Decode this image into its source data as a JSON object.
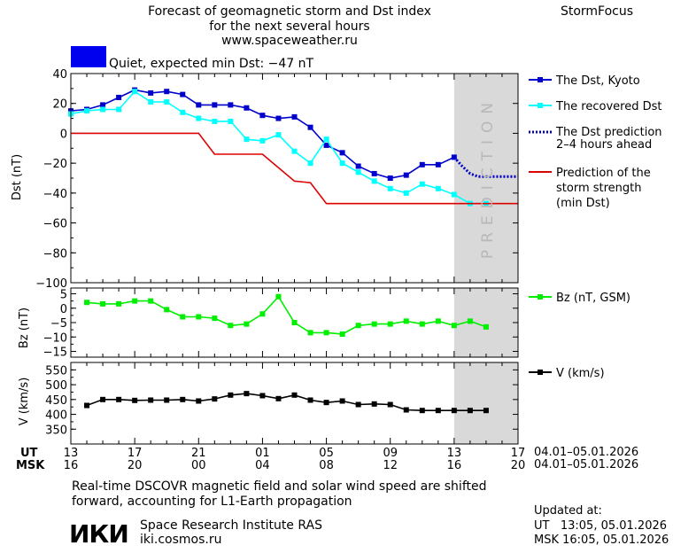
{
  "header": {
    "title_line1": "Forecast of geomagnetic storm and Dst index",
    "title_line2": "for the next several hours",
    "site": "www.spaceweather.ru",
    "brand": "StormFocus"
  },
  "status": {
    "text": "Quiet, expected min Dst: −47 nT",
    "color": "#0000ee"
  },
  "prediction_label": "PREDICTION",
  "legend": {
    "dst_kyoto": "The Dst, Kyoto",
    "recovered": "The recovered Dst",
    "pred_line1": "The Dst prediction",
    "pred_line2": "2–4 hours ahead",
    "strength_line1": "Prediction of the",
    "strength_line2": "storm strength",
    "strength_line3": "(min Dst)",
    "bz": "Bz (nT, GSM)",
    "v": "V (km/s)"
  },
  "time_axis": {
    "ut_label": "UT",
    "msk_label": "MSK",
    "ut_ticks": [
      "13",
      "17",
      "21",
      "01",
      "05",
      "09",
      "13",
      "17"
    ],
    "msk_ticks": [
      "16",
      "20",
      "00",
      "04",
      "08",
      "12",
      "16",
      "20"
    ],
    "date_range_ut": "04.01–05.01.2026",
    "date_range_msk": "04.01–05.01.2026"
  },
  "footer": {
    "note_line1": "Real-time DSCOVR magnetic field and solar wind speed are shifted",
    "note_line2": "forward, accounting for L1-Earth propagation",
    "logo_text": "ИКИ",
    "institute": "Space Research Institute RAS",
    "institute_url": "iki.cosmos.ru",
    "updated_label": "Updated at:",
    "updated_ut": "UT   13:05, 05.01.2026",
    "updated_msk": "MSK 16:05, 05.01.2026"
  },
  "colors": {
    "dst": "#0000cc",
    "recovered": "#00ffff",
    "prediction": "#0000cc",
    "strength": "#dd0000",
    "bz": "#00ee00",
    "v": "#000000",
    "prediction_band": "#d9d9d9"
  },
  "chart_data": [
    {
      "type": "line",
      "ylabel": "Dst (nT)",
      "ylim": [
        -100,
        40
      ],
      "yticks": [
        40,
        20,
        0,
        -20,
        -40,
        -60,
        -80,
        -100
      ],
      "xlim": [
        0,
        28
      ],
      "prediction_start": 24,
      "series": [
        {
          "name": "The Dst, Kyoto",
          "x": [
            0,
            1,
            2,
            3,
            4,
            5,
            6,
            7,
            8,
            9,
            10,
            11,
            12,
            13,
            14,
            15,
            16,
            17,
            18,
            19,
            20,
            21,
            22,
            23,
            24
          ],
          "y": [
            15,
            16,
            19,
            24,
            29,
            27,
            28,
            26,
            19,
            19,
            19,
            17,
            12,
            10,
            11,
            4,
            -8,
            -13,
            -22,
            -27,
            -30,
            -28,
            -21,
            -21,
            -16
          ]
        },
        {
          "name": "The recovered Dst",
          "x": [
            0,
            1,
            2,
            3,
            4,
            5,
            6,
            7,
            8,
            9,
            10,
            11,
            12,
            13,
            14,
            15,
            16,
            17,
            18,
            19,
            20,
            21,
            22,
            23,
            24,
            25,
            26
          ],
          "y": [
            13,
            15,
            16,
            16,
            28,
            21,
            21,
            14,
            10,
            8,
            8,
            -4,
            -5,
            -1,
            -12,
            -20,
            -4,
            -20,
            -26,
            -32,
            -37,
            -40,
            -34,
            -37,
            -41,
            -47,
            -47
          ]
        },
        {
          "name": "The Dst prediction 2–4 hours ahead",
          "x": [
            24,
            24.5,
            25,
            25.5,
            26,
            27,
            28
          ],
          "y": [
            -16,
            -22,
            -27,
            -29,
            -29,
            -29,
            -29
          ]
        },
        {
          "name": "Prediction of the storm strength (min Dst)",
          "x": [
            0,
            8,
            9,
            12,
            14,
            15,
            16,
            17,
            28
          ],
          "y": [
            0,
            0,
            -14,
            -14,
            -32,
            -33,
            -47,
            -47,
            -47
          ]
        }
      ]
    },
    {
      "type": "line",
      "ylabel": "Bz (nT)",
      "ylim": [
        -17,
        7
      ],
      "yticks": [
        5,
        0,
        -5,
        -10,
        -15
      ],
      "xlim": [
        0,
        28
      ],
      "series": [
        {
          "name": "Bz (nT, GSM)",
          "x": [
            1,
            2,
            3,
            4,
            5,
            6,
            7,
            8,
            9,
            10,
            11,
            12,
            13,
            14,
            15,
            16,
            17,
            18,
            19,
            20,
            21,
            22,
            23,
            24,
            25,
            26
          ],
          "y": [
            2,
            1.5,
            1.5,
            2.5,
            2.5,
            -0.5,
            -3,
            -3,
            -3.5,
            -6,
            -5.5,
            -2,
            4,
            -5,
            -8.5,
            -8.5,
            -9,
            -6,
            -5.5,
            -5.5,
            -4.5,
            -5.5,
            -4.5,
            -6,
            -4.5,
            -6.5
          ]
        }
      ]
    },
    {
      "type": "line",
      "ylabel": "V (km/s)",
      "ylim": [
        300,
        575
      ],
      "yticks": [
        550,
        500,
        450,
        400,
        350
      ],
      "xlim": [
        0,
        28
      ],
      "series": [
        {
          "name": "V (km/s)",
          "x": [
            1,
            2,
            3,
            4,
            5,
            6,
            7,
            8,
            9,
            10,
            11,
            12,
            13,
            14,
            15,
            16,
            17,
            18,
            19,
            20,
            21,
            22,
            23,
            24,
            25,
            26
          ],
          "y": [
            430,
            450,
            450,
            447,
            448,
            448,
            450,
            445,
            452,
            465,
            470,
            463,
            453,
            465,
            448,
            440,
            445,
            433,
            435,
            433,
            415,
            413,
            413,
            413,
            413,
            413
          ]
        }
      ]
    }
  ]
}
